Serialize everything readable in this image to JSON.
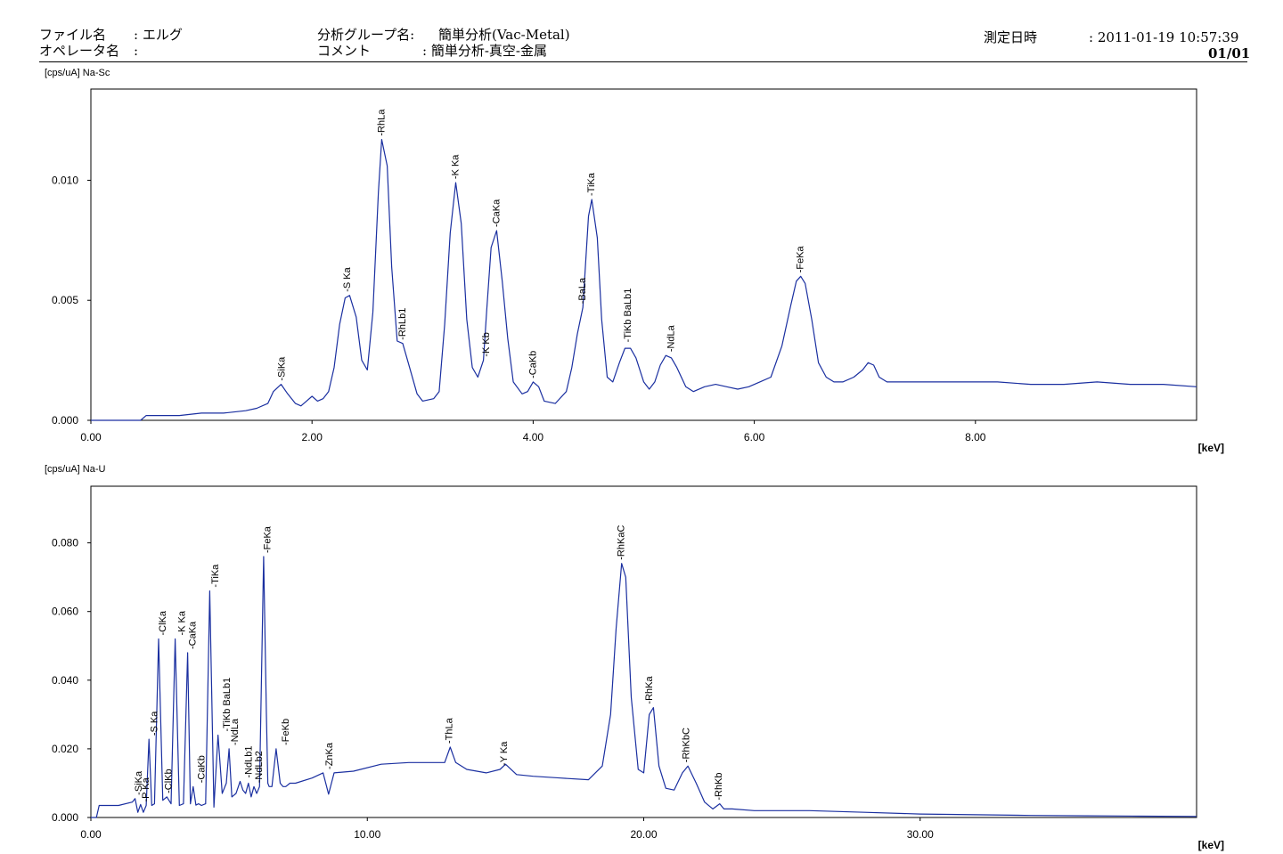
{
  "header": {
    "file_label": "ファイル名",
    "file_value": ": エルグ",
    "operator_label": "オペレータ名",
    "operator_value": ":",
    "group_label": "分析グループ名:",
    "group_value": "簡単分析(Vac-Metal)",
    "comment_label": "コメント",
    "comment_value": ": 簡単分析-真空-金属",
    "date_label": "測定日時",
    "date_value": ": 2011-01-19 10:57:39",
    "page": "01/01"
  },
  "chart_data": [
    {
      "type": "line",
      "title": "[cps/uA] Na-Sc",
      "xlabel": "[keV]",
      "ylabel": "[cps/uA]",
      "xlim": [
        0,
        10.0
      ],
      "ylim": [
        0,
        0.0138
      ],
      "xticks": [
        0,
        2,
        4,
        6,
        8
      ],
      "xtick_labels": [
        "0.00",
        "2.00",
        "4.00",
        "6.00",
        "8.00"
      ],
      "yticks": [
        0,
        0.005,
        0.01
      ],
      "ytick_labels": [
        "0.000",
        "0.005",
        "0.010"
      ],
      "color": "#1a2fa0",
      "series": [
        {
          "x": [
            0,
            0.45,
            0.5,
            0.6,
            0.8,
            1.0,
            1.2,
            1.4,
            1.5,
            1.6,
            1.65,
            1.72,
            1.78,
            1.85,
            1.9,
            1.95,
            2.0,
            2.05,
            2.1,
            2.15,
            2.2,
            2.25,
            2.3,
            2.34,
            2.4,
            2.45,
            2.5,
            2.55,
            2.6,
            2.63,
            2.68,
            2.72,
            2.77,
            2.82,
            2.87,
            2.95,
            3.0,
            3.1,
            3.15,
            3.2,
            3.25,
            3.3,
            3.35,
            3.4,
            3.45,
            3.5,
            3.55,
            3.58,
            3.62,
            3.67,
            3.72,
            3.77,
            3.82,
            3.9,
            3.95,
            4.0,
            4.05,
            4.1,
            4.2,
            4.3,
            4.35,
            4.4,
            4.45,
            4.5,
            4.53,
            4.58,
            4.62,
            4.67,
            4.72,
            4.78,
            4.83,
            4.88,
            4.93,
            5.0,
            5.05,
            5.1,
            5.15,
            5.2,
            5.25,
            5.3,
            5.38,
            5.45,
            5.55,
            5.65,
            5.75,
            5.85,
            5.95,
            6.05,
            6.15,
            6.25,
            6.33,
            6.38,
            6.42,
            6.46,
            6.52,
            6.58,
            6.65,
            6.72,
            6.8,
            6.9,
            6.98,
            7.03,
            7.08,
            7.13,
            7.2,
            7.35,
            7.6,
            7.9,
            8.2,
            8.5,
            8.8,
            9.1,
            9.4,
            9.7,
            10.0
          ],
          "values": [
            0,
            0,
            0.0002,
            0.0002,
            0.0002,
            0.0003,
            0.0003,
            0.0004,
            0.0005,
            0.0007,
            0.0012,
            0.0015,
            0.0011,
            0.0007,
            0.0006,
            0.0008,
            0.001,
            0.0008,
            0.0009,
            0.0012,
            0.0022,
            0.004,
            0.0051,
            0.0052,
            0.0043,
            0.0025,
            0.0021,
            0.0045,
            0.0095,
            0.0117,
            0.0106,
            0.0064,
            0.0033,
            0.0032,
            0.0024,
            0.0011,
            0.0008,
            0.0009,
            0.0012,
            0.004,
            0.0078,
            0.0099,
            0.0082,
            0.0042,
            0.0022,
            0.0018,
            0.0025,
            0.0046,
            0.0072,
            0.0079,
            0.0058,
            0.0034,
            0.0016,
            0.0011,
            0.0012,
            0.0016,
            0.0014,
            0.0008,
            0.0007,
            0.0012,
            0.0022,
            0.0036,
            0.0047,
            0.0085,
            0.0092,
            0.0076,
            0.0042,
            0.0018,
            0.0016,
            0.0024,
            0.003,
            0.003,
            0.0026,
            0.0016,
            0.0013,
            0.0016,
            0.0023,
            0.0027,
            0.0026,
            0.0022,
            0.0014,
            0.0012,
            0.0014,
            0.0015,
            0.0014,
            0.0013,
            0.0014,
            0.0016,
            0.0018,
            0.0031,
            0.0048,
            0.0058,
            0.006,
            0.0057,
            0.0042,
            0.0024,
            0.0018,
            0.0016,
            0.0016,
            0.0018,
            0.0021,
            0.0024,
            0.0023,
            0.0018,
            0.0016,
            0.0016,
            0.0016,
            0.0016,
            0.0016,
            0.0015,
            0.0015,
            0.0016,
            0.0015,
            0.0015,
            0.0014
          ]
        }
      ],
      "annotations": [
        {
          "label": "SiKa",
          "x": 1.73,
          "y": 0.0015
        },
        {
          "label": "S Ka",
          "x": 2.32,
          "y": 0.0052
        },
        {
          "label": "RhLa",
          "x": 2.63,
          "y": 0.0117
        },
        {
          "label": "RhLb1",
          "x": 2.82,
          "y": 0.0032
        },
        {
          "label": "K Ka",
          "x": 3.3,
          "y": 0.0099
        },
        {
          "label": "K Kb",
          "x": 3.58,
          "y": 0.0025
        },
        {
          "label": "CaKa",
          "x": 3.67,
          "y": 0.0079
        },
        {
          "label": "CaKb",
          "x": 4.0,
          "y": 0.0016
        },
        {
          "label": "BaLa",
          "x": 4.45,
          "y": 0.0047
        },
        {
          "label": "TiKa",
          "x": 4.53,
          "y": 0.0092
        },
        {
          "label": "TiKb BaLb1",
          "x": 4.86,
          "y": 0.0031
        },
        {
          "label": "NdLa",
          "x": 5.25,
          "y": 0.0027
        },
        {
          "label": "FeKa",
          "x": 6.42,
          "y": 0.006
        }
      ]
    },
    {
      "type": "line",
      "title": "[cps/uA] Na-U",
      "xlabel": "[keV]",
      "ylabel": "[cps/uA]",
      "xlim": [
        0,
        40.0
      ],
      "ylim": [
        0,
        0.0965
      ],
      "xticks": [
        0,
        10,
        20,
        30
      ],
      "xtick_labels": [
        "0.00",
        "10.00",
        "20.00",
        "30.00"
      ],
      "yticks": [
        0,
        0.02,
        0.04,
        0.06,
        0.08
      ],
      "ytick_labels": [
        "0.000",
        "0.020",
        "0.040",
        "0.060",
        "0.080"
      ],
      "color": "#1a2fa0",
      "series": [
        {
          "x": [
            0,
            0.2,
            0.3,
            1.0,
            1.5,
            1.6,
            1.7,
            1.8,
            1.9,
            2.0,
            2.1,
            2.2,
            2.3,
            2.45,
            2.6,
            2.75,
            2.9,
            3.05,
            3.2,
            3.35,
            3.5,
            3.6,
            3.7,
            3.8,
            3.9,
            4.0,
            4.15,
            4.3,
            4.45,
            4.5,
            4.6,
            4.75,
            4.9,
            5.0,
            5.1,
            5.25,
            5.4,
            5.5,
            5.6,
            5.7,
            5.8,
            5.9,
            6.0,
            6.1,
            6.25,
            6.35,
            6.4,
            6.45,
            6.55,
            6.7,
            6.85,
            6.95,
            7.05,
            7.2,
            7.4,
            8.0,
            8.4,
            8.6,
            8.8,
            9.5,
            10.5,
            11.5,
            12.5,
            12.8,
            13.0,
            13.2,
            13.6,
            14.3,
            14.8,
            15.0,
            15.4,
            16.0,
            17.0,
            18.0,
            18.5,
            18.8,
            19.0,
            19.2,
            19.35,
            19.55,
            19.8,
            20.0,
            20.2,
            20.35,
            20.55,
            20.8,
            21.1,
            21.4,
            21.6,
            21.9,
            22.2,
            22.5,
            22.75,
            22.9,
            23.2,
            24.0,
            26.0,
            28.0,
            30.0,
            32.0,
            34.0,
            36.0,
            38.0,
            40.0
          ],
          "values": [
            0,
            0,
            0.0035,
            0.0035,
            0.0045,
            0.0055,
            0.0015,
            0.0038,
            0.0015,
            0.0035,
            0.0228,
            0.0035,
            0.004,
            0.052,
            0.005,
            0.006,
            0.004,
            0.052,
            0.0035,
            0.004,
            0.048,
            0.004,
            0.009,
            0.0036,
            0.004,
            0.0035,
            0.004,
            0.066,
            0.003,
            0.01,
            0.024,
            0.007,
            0.01,
            0.02,
            0.006,
            0.007,
            0.0105,
            0.008,
            0.007,
            0.01,
            0.006,
            0.009,
            0.007,
            0.009,
            0.076,
            0.03,
            0.01,
            0.009,
            0.009,
            0.02,
            0.01,
            0.009,
            0.009,
            0.01,
            0.01,
            0.0115,
            0.013,
            0.0068,
            0.013,
            0.0135,
            0.0155,
            0.016,
            0.016,
            0.016,
            0.0205,
            0.016,
            0.014,
            0.013,
            0.014,
            0.0155,
            0.0125,
            0.012,
            0.0115,
            0.011,
            0.015,
            0.03,
            0.055,
            0.074,
            0.07,
            0.035,
            0.014,
            0.013,
            0.03,
            0.032,
            0.015,
            0.0085,
            0.008,
            0.013,
            0.015,
            0.01,
            0.0045,
            0.0025,
            0.004,
            0.0025,
            0.0025,
            0.002,
            0.002,
            0.0015,
            0.001,
            0.0008,
            0.0006,
            0.0005,
            0.0004,
            0.0003
          ]
        }
      ],
      "annotations": [
        {
          "label": "SiKa",
          "x": 1.75,
          "y": 0.0055
        },
        {
          "label": "P Ka",
          "x": 2.0,
          "y": 0.0035
        },
        {
          "label": "S Ka",
          "x": 2.31,
          "y": 0.0228
        },
        {
          "label": "ClKa",
          "x": 2.62,
          "y": 0.052
        },
        {
          "label": "ClKb",
          "x": 2.82,
          "y": 0.006
        },
        {
          "label": "K Ka",
          "x": 3.31,
          "y": 0.052
        },
        {
          "label": "CaKa",
          "x": 3.69,
          "y": 0.048
        },
        {
          "label": "CaKb",
          "x": 4.01,
          "y": 0.009
        },
        {
          "label": "TiKa",
          "x": 4.51,
          "y": 0.066
        },
        {
          "label": "TiKb BaLb1",
          "x": 4.93,
          "y": 0.024
        },
        {
          "label": "NdLa",
          "x": 5.23,
          "y": 0.02
        },
        {
          "label": "NdLb1",
          "x": 5.72,
          "y": 0.0105
        },
        {
          "label": "NdLb2",
          "x": 6.09,
          "y": 0.009
        },
        {
          "label": "FeKa",
          "x": 6.4,
          "y": 0.076
        },
        {
          "label": "FeKb",
          "x": 7.06,
          "y": 0.02
        },
        {
          "label": "ZnKa",
          "x": 8.64,
          "y": 0.013
        },
        {
          "label": "ThLa",
          "x": 12.97,
          "y": 0.0205
        },
        {
          "label": "Y Ka",
          "x": 14.96,
          "y": 0.014
        },
        {
          "label": "RhKaC",
          "x": 19.2,
          "y": 0.074
        },
        {
          "label": "RhKa",
          "x": 20.21,
          "y": 0.032
        },
        {
          "label": "RhKbC",
          "x": 21.55,
          "y": 0.015
        },
        {
          "label": "RhKb",
          "x": 22.72,
          "y": 0.004
        }
      ]
    }
  ]
}
